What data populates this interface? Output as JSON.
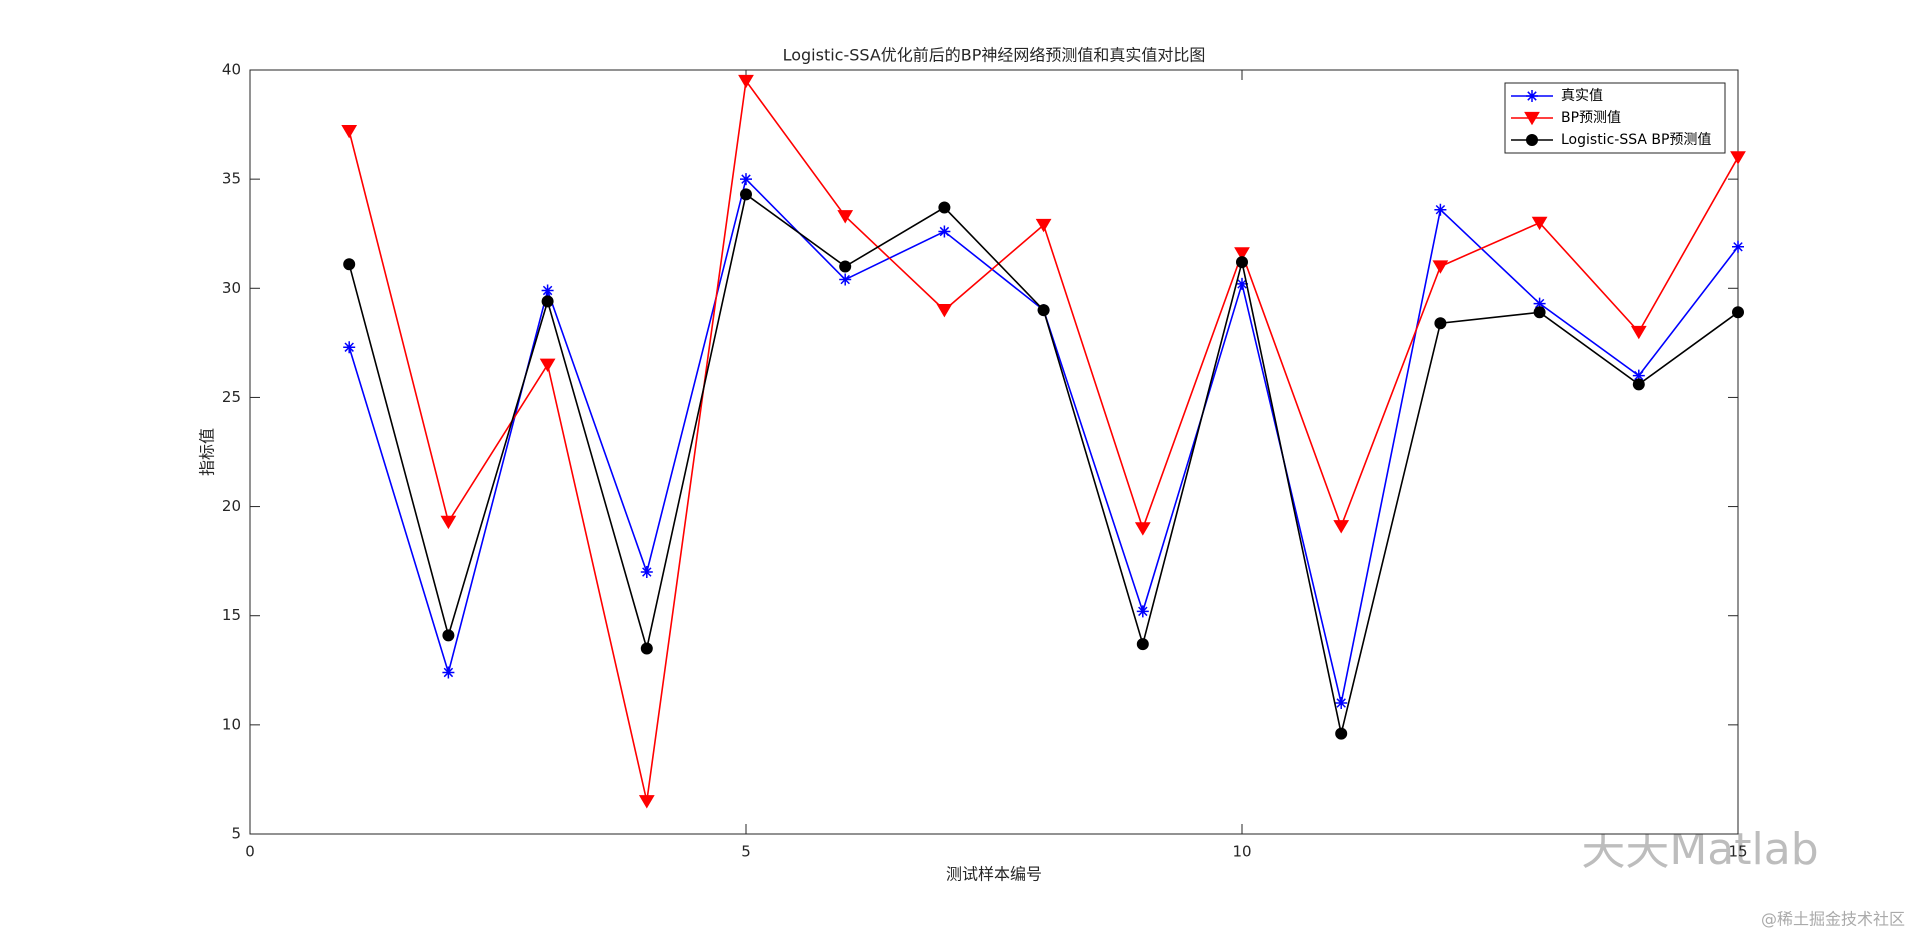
{
  "chart_data": {
    "type": "line",
    "title": "Logistic-SSA优化前后的BP神经网络预测值和真实值对比图",
    "xlabel": "测试样本编号",
    "ylabel": "指标值",
    "x": [
      1,
      2,
      3,
      4,
      5,
      6,
      7,
      8,
      9,
      10,
      11,
      12,
      13,
      14,
      15
    ],
    "series": [
      {
        "name": "真实值",
        "color": "#0000ff",
        "marker": "asterisk",
        "values": [
          27.3,
          12.4,
          29.9,
          17.0,
          35.0,
          30.4,
          32.6,
          29.0,
          15.2,
          30.2,
          11.0,
          33.6,
          29.3,
          26.0,
          31.9
        ]
      },
      {
        "name": "BP预测值",
        "color": "#ff0000",
        "marker": "triangle-down",
        "values": [
          37.2,
          19.3,
          26.5,
          6.5,
          39.5,
          33.3,
          29.0,
          32.9,
          19.0,
          31.6,
          19.1,
          31.0,
          33.0,
          28.0,
          36.0
        ]
      },
      {
        "name": "Logistic-SSA BP预测值",
        "color": "#000000",
        "marker": "circle",
        "values": [
          31.1,
          14.1,
          29.4,
          13.5,
          34.3,
          31.0,
          33.7,
          29.0,
          13.7,
          31.2,
          9.6,
          28.4,
          28.9,
          25.6,
          28.9
        ]
      }
    ],
    "xlim": [
      0,
      15
    ],
    "xticks": [
      0,
      5,
      10,
      15
    ],
    "ylim": [
      5,
      40
    ],
    "yticks": [
      5,
      10,
      15,
      20,
      25,
      30,
      35,
      40
    ],
    "grid": false,
    "legend": "northeast"
  },
  "watermark": {
    "logo": "天天Matlab",
    "site": "@稀土掘金技术社区"
  }
}
